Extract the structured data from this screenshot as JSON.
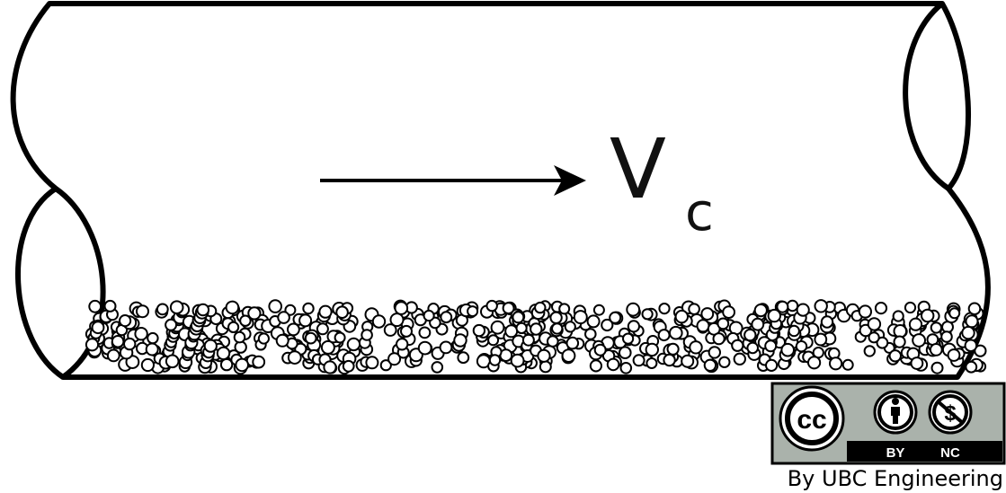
{
  "diagram": {
    "velocity_symbol": "V",
    "velocity_subscript": "c",
    "flow_direction": "right"
  },
  "license_badge": {
    "cc_label": "cc",
    "by_label": "BY",
    "nc_label": "NC",
    "badge_color": "#aab2ab",
    "credit": "By UBC Engineering"
  },
  "colors": {
    "stroke": "#000000",
    "background": "#ffffff"
  }
}
